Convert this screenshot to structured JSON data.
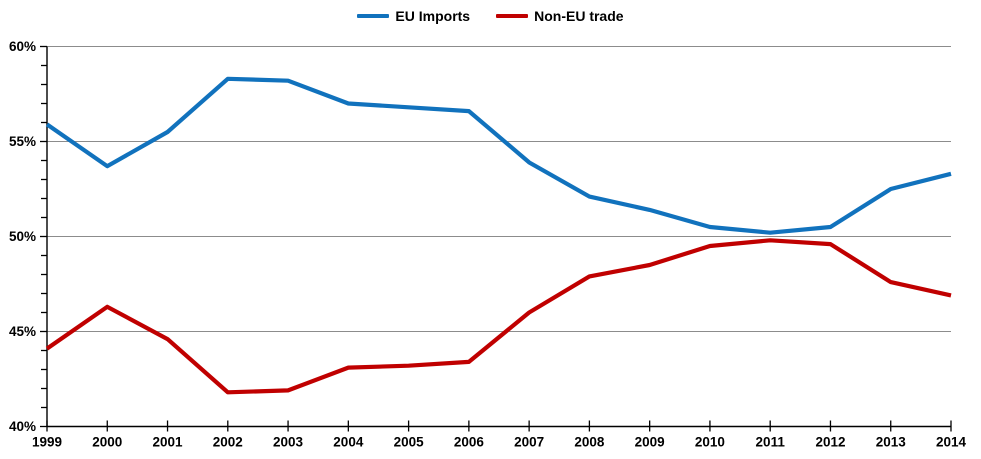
{
  "chart_data": {
    "type": "line",
    "title": "",
    "xlabel": "",
    "ylabel": "",
    "x": [
      "1999",
      "2000",
      "2001",
      "2002",
      "2003",
      "2004",
      "2005",
      "2006",
      "2007",
      "2008",
      "2009",
      "2010",
      "2011",
      "2012",
      "2013",
      "2014"
    ],
    "series": [
      {
        "name": "EU Imports",
        "color": "#1172BD",
        "values": [
          55.9,
          53.7,
          55.5,
          58.3,
          58.2,
          57.0,
          56.8,
          56.6,
          53.9,
          52.1,
          51.4,
          50.5,
          50.2,
          50.5,
          52.5,
          53.3
        ]
      },
      {
        "name": "Non-EU trade",
        "color": "#C00000",
        "values": [
          44.1,
          46.3,
          44.6,
          41.8,
          41.9,
          43.1,
          43.2,
          43.4,
          46.0,
          47.9,
          48.5,
          49.5,
          49.8,
          49.6,
          47.6,
          46.9
        ]
      }
    ],
    "ylim": [
      40,
      60
    ],
    "y_major_step": 5,
    "y_minor_step": 1,
    "y_tick_labels": [
      "40%",
      "45%",
      "50%",
      "55%",
      "60%"
    ],
    "y_tick_suffix": "%",
    "grid": "horizontal-major",
    "gridline_color": "#8C8C8C",
    "axis_color": "#000000",
    "legend_position": "top-center"
  }
}
